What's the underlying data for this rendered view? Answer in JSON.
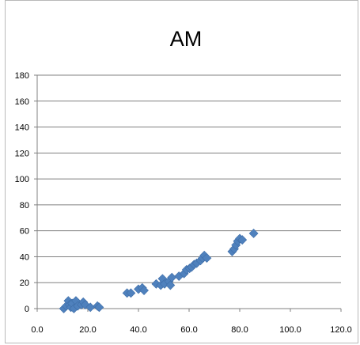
{
  "chart_data": {
    "type": "scatter",
    "title": "AM",
    "xlabel": "",
    "ylabel": "",
    "xlim": [
      0,
      120
    ],
    "ylim": [
      0,
      180
    ],
    "x_ticks": [
      "0.0",
      "20.0",
      "40.0",
      "60.0",
      "80.0",
      "100.0",
      "120.0"
    ],
    "y_ticks": [
      "0",
      "20",
      "40",
      "60",
      "80",
      "100",
      "120",
      "140",
      "160",
      "180"
    ],
    "grid": true,
    "legend": "none",
    "marker_color": "#4f81bd",
    "series": [
      {
        "points": [
          [
            10.5,
            0
          ],
          [
            11.5,
            2
          ],
          [
            12.3,
            6
          ],
          [
            12.8,
            3
          ],
          [
            13.3,
            1
          ],
          [
            13.8,
            4
          ],
          [
            14.5,
            0
          ],
          [
            15.3,
            6
          ],
          [
            16.0,
            2
          ],
          [
            17.5,
            3
          ],
          [
            18.2,
            5
          ],
          [
            19.0,
            3
          ],
          [
            21.0,
            1
          ],
          [
            23.8,
            2
          ],
          [
            24.5,
            1
          ],
          [
            35.5,
            12
          ],
          [
            37.0,
            12
          ],
          [
            40.0,
            15
          ],
          [
            41.5,
            16
          ],
          [
            42.2,
            14
          ],
          [
            47.0,
            19
          ],
          [
            48.8,
            18
          ],
          [
            49.5,
            23
          ],
          [
            50.3,
            19
          ],
          [
            52.0,
            21
          ],
          [
            52.6,
            18
          ],
          [
            53.2,
            24
          ],
          [
            56.0,
            25
          ],
          [
            58.0,
            27
          ],
          [
            59.0,
            30
          ],
          [
            60.2,
            31
          ],
          [
            61.0,
            32
          ],
          [
            62.0,
            34
          ],
          [
            63.0,
            35
          ],
          [
            64.5,
            37
          ],
          [
            65.3,
            39
          ],
          [
            66.0,
            41
          ],
          [
            67.0,
            39
          ],
          [
            77.0,
            44
          ],
          [
            77.8,
            46
          ],
          [
            78.5,
            49
          ],
          [
            79.2,
            52
          ],
          [
            80.0,
            54
          ],
          [
            81.0,
            53
          ],
          [
            85.5,
            58
          ]
        ]
      }
    ]
  }
}
